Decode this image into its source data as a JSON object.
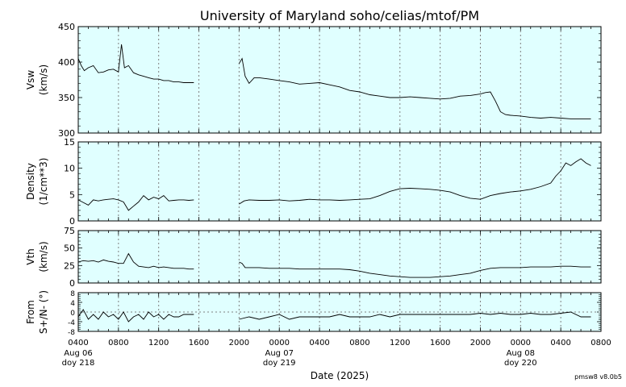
{
  "title": "University of Maryland  soho/celias/mtof/PM",
  "xlabel": "Date (2025)",
  "footer": "pmsw8 v8.0b5",
  "colors": {
    "panel_bg": "#e0ffff",
    "line": "#000000",
    "grid": "#808080"
  },
  "x_ticks": [
    "0400",
    "0800",
    "1200",
    "1600",
    "2000",
    "0000",
    "0400",
    "0800",
    "1200",
    "1600",
    "2000",
    "0000",
    "0400",
    "0800"
  ],
  "day_labels": [
    {
      "tick_index": 0,
      "date": "Aug 06",
      "doy": "doy 218"
    },
    {
      "tick_index": 5,
      "date": "Aug 07",
      "doy": "doy 219"
    },
    {
      "tick_index": 11,
      "date": "Aug 08",
      "doy": "doy 220"
    }
  ],
  "chart_data": {
    "type": "line",
    "x_unit": "hours since 2025-08-06 04:00",
    "xlim": [
      0,
      52
    ],
    "data_gap": [
      11.5,
      16.0
    ],
    "panels": [
      {
        "ylabel_line1": "Vsw",
        "ylabel_line2": "(km/s)",
        "ylim": [
          300,
          450
        ],
        "yticks": [
          300,
          350,
          400,
          450
        ],
        "hline": null,
        "x": [
          0,
          0.3,
          0.6,
          1,
          1.5,
          2,
          2.5,
          3,
          3.5,
          4,
          4.3,
          4.6,
          5,
          5.5,
          6,
          6.5,
          7,
          7.5,
          8,
          8.5,
          9,
          9.5,
          10,
          10.5,
          11,
          11.5,
          16,
          16.3,
          16.6,
          17,
          17.5,
          18,
          19,
          20,
          21,
          22,
          23,
          24,
          25,
          26,
          27,
          28,
          29,
          30,
          31,
          32,
          33,
          34,
          35,
          36,
          37,
          38,
          39,
          40,
          40.5,
          41,
          41.5,
          42,
          42.5,
          43,
          44,
          45,
          46,
          47,
          48,
          49,
          50,
          50.5,
          51
        ],
        "y": [
          405,
          395,
          388,
          392,
          395,
          385,
          386,
          389,
          390,
          386,
          425,
          392,
          395,
          385,
          382,
          380,
          378,
          376,
          376,
          374,
          374,
          372,
          372,
          371,
          371,
          371,
          398,
          405,
          380,
          370,
          378,
          378,
          376,
          374,
          372,
          369,
          370,
          371,
          368,
          365,
          360,
          358,
          354,
          352,
          350,
          350,
          351,
          350,
          349,
          348,
          349,
          352,
          353,
          355,
          357,
          358,
          345,
          330,
          326,
          325,
          324,
          322,
          321,
          322,
          321,
          320,
          320,
          320,
          320
        ]
      },
      {
        "ylabel_line1": "Density",
        "ylabel_line2": "(1/cm**3)",
        "ylim": [
          0,
          15
        ],
        "yticks": [
          0,
          5,
          10,
          15
        ],
        "hline": null,
        "x": [
          0,
          0.5,
          1,
          1.5,
          2,
          2.5,
          3,
          3.5,
          4,
          4.5,
          5,
          5.5,
          6,
          6.5,
          7,
          7.5,
          8,
          8.5,
          9,
          9.5,
          10,
          10.5,
          11,
          11.5,
          16,
          16.5,
          17,
          18,
          19,
          20,
          21,
          22,
          23,
          24,
          25,
          26,
          27,
          28,
          29,
          30,
          31,
          32,
          33,
          34,
          35,
          36,
          37,
          38,
          39,
          40,
          41,
          42,
          43,
          44,
          45,
          46,
          47,
          47.5,
          48,
          48.5,
          49,
          49.5,
          50,
          50.5,
          51
        ],
        "y": [
          4,
          3.5,
          3,
          4,
          3.8,
          4,
          4.1,
          4.2,
          4,
          3.6,
          2,
          2.8,
          3.6,
          4.8,
          4,
          4.5,
          4.2,
          4.8,
          3.8,
          3.9,
          4,
          4,
          3.9,
          4,
          3.2,
          3.8,
          4,
          3.9,
          3.9,
          4,
          3.8,
          3.9,
          4.1,
          4,
          4,
          3.9,
          4,
          4.1,
          4.2,
          4.8,
          5.6,
          6.1,
          6.2,
          6.1,
          6,
          5.8,
          5.5,
          4.8,
          4.3,
          4.1,
          4.8,
          5.2,
          5.5,
          5.7,
          6,
          6.5,
          7.2,
          8.5,
          9.5,
          11,
          10.5,
          11.2,
          11.8,
          11,
          10.5
        ]
      },
      {
        "ylabel_line1": "Vth",
        "ylabel_line2": "(km/s)",
        "ylim": [
          0,
          75
        ],
        "yticks": [
          0,
          25,
          50,
          75
        ],
        "hline": null,
        "x": [
          0,
          0.5,
          1,
          1.5,
          2,
          2.5,
          3,
          3.5,
          4,
          4.5,
          5,
          5.5,
          6,
          6.5,
          7,
          7.5,
          8,
          8.5,
          9,
          9.5,
          10,
          10.5,
          11,
          11.5,
          16,
          16.3,
          16.6,
          17,
          18,
          19,
          20,
          21,
          22,
          23,
          24,
          25,
          26,
          27,
          28,
          29,
          30,
          31,
          32,
          33,
          34,
          35,
          36,
          37,
          38,
          39,
          40,
          41,
          42,
          43,
          44,
          45,
          46,
          47,
          48,
          49,
          50,
          51
        ],
        "y": [
          30,
          32,
          31,
          32,
          30,
          33,
          31,
          30,
          28,
          28,
          42,
          30,
          24,
          23,
          22,
          24,
          22,
          23,
          22,
          21,
          21,
          21,
          20,
          20,
          30,
          28,
          22,
          22,
          22,
          21,
          21,
          21,
          20,
          20,
          20,
          20,
          20,
          19,
          17,
          14,
          12,
          10,
          9,
          8,
          8,
          8,
          9,
          10,
          12,
          14,
          18,
          21,
          22,
          22,
          22,
          23,
          23,
          23,
          24,
          24,
          23,
          23
        ]
      },
      {
        "ylabel_line1": "From",
        "ylabel_line2": "S+/N- (°)",
        "ylim": [
          -8,
          8
        ],
        "yticks": [
          -8,
          -4,
          0,
          4,
          8
        ],
        "hline": 0,
        "x": [
          0,
          0.5,
          1,
          1.5,
          2,
          2.5,
          3,
          3.5,
          4,
          4.5,
          5,
          5.5,
          6,
          6.5,
          7,
          7.5,
          8,
          8.5,
          9,
          9.5,
          10,
          10.5,
          11,
          11.5,
          16,
          17,
          18,
          19,
          20,
          21,
          22,
          23,
          24,
          25,
          26,
          27,
          28,
          29,
          30,
          31,
          32,
          33,
          34,
          35,
          36,
          37,
          38,
          39,
          40,
          41,
          42,
          43,
          44,
          45,
          46,
          47,
          48,
          49,
          50,
          51
        ],
        "y": [
          -2,
          1,
          -3,
          -1,
          -3,
          0,
          -2,
          -1,
          -3,
          0,
          -4,
          -2,
          -1,
          -3,
          0,
          -2,
          -1,
          -3,
          -1,
          -2,
          -2,
          -1,
          -1,
          -1,
          -3,
          -2,
          -3,
          -2,
          -1,
          -3,
          -2,
          -2,
          -2,
          -2,
          -1,
          -2,
          -2,
          -2,
          -1,
          -2,
          -1,
          -1,
          -1,
          -1,
          -1,
          -1,
          -1,
          -1,
          -0.5,
          -1,
          -0.5,
          -1,
          -1,
          -0.5,
          -1,
          -1,
          -0.5,
          0,
          -2,
          -2
        ]
      }
    ]
  }
}
